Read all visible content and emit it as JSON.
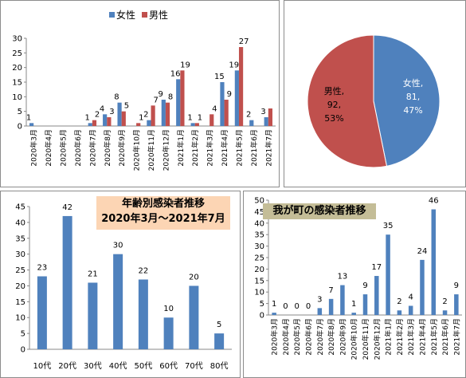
{
  "colors": {
    "female": "#4f81bd",
    "male": "#c0504d",
    "bar": "#4f81bd",
    "title3_bg": "#fcd5b4",
    "title4_bg": "#c4bd97"
  },
  "chart_data": [
    {
      "type": "bar",
      "title": "",
      "legend": {
        "position": "top",
        "entries": [
          "女性",
          "男性"
        ]
      },
      "ylim": [
        0,
        30
      ],
      "yticks": [
        0,
        5,
        10,
        15,
        20,
        25,
        30
      ],
      "categories": [
        "2020年3月",
        "2020年4月",
        "2020年5月",
        "2020年6月",
        "2020年7月",
        "2020年8月",
        "2020年9月",
        "2020年10月",
        "2020年11月",
        "2020年12月",
        "2021年1月",
        "2021年2月",
        "2021年3月",
        "2021年4月",
        "2021年5月",
        "2021年6月",
        "2021年7月"
      ],
      "series": [
        {
          "name": "女性",
          "values": [
            1,
            0,
            0,
            0,
            1,
            4,
            8,
            0,
            2,
            9,
            16,
            1,
            0,
            15,
            19,
            2,
            3
          ],
          "labels": [
            "1",
            "",
            "",
            "",
            "1",
            "4",
            "8",
            "",
            "2",
            "9",
            "16",
            "1",
            "",
            "15",
            "19",
            "2",
            "3"
          ]
        },
        {
          "name": "男性",
          "values": [
            0,
            0,
            0,
            0,
            2,
            3,
            5,
            1,
            7,
            8,
            19,
            1,
            4,
            9,
            27,
            0,
            6
          ],
          "labels": [
            "",
            "",
            "",
            "",
            "2",
            "3",
            "5",
            "1",
            "7",
            "8",
            "19",
            "1",
            "4",
            "9",
            "27",
            "",
            ""
          ]
        }
      ]
    },
    {
      "type": "pie",
      "slices": [
        {
          "name": "女性",
          "value": 81,
          "percent": "47%",
          "label_lines": [
            "女性,",
            "81,",
            "47%"
          ]
        },
        {
          "name": "男性",
          "value": 92,
          "percent": "53%",
          "label_lines": [
            "男性,",
            "92,",
            "53%"
          ]
        }
      ]
    },
    {
      "type": "bar",
      "title": "年齢別感染者推移",
      "subtitle": "2020年3月～2021年7月",
      "ylim": [
        0,
        45
      ],
      "yticks": [
        0,
        5,
        10,
        15,
        20,
        25,
        30,
        35,
        40,
        45
      ],
      "categories": [
        "10代",
        "20代",
        "30代",
        "40代",
        "50代",
        "60代",
        "70代",
        "80代"
      ],
      "values": [
        23,
        42,
        21,
        30,
        22,
        10,
        20,
        5
      ]
    },
    {
      "type": "bar",
      "title": "我が町の感染者推移",
      "ylim": [
        0,
        50
      ],
      "yticks": [
        0,
        5,
        10,
        15,
        20,
        25,
        30,
        35,
        40,
        45,
        50
      ],
      "categories": [
        "2020年3月",
        "2020年4月",
        "2020年5月",
        "2020年6月",
        "2020年7月",
        "2020年8月",
        "2020年9月",
        "2020年10月",
        "2020年11月",
        "2020年12月",
        "2021年1月",
        "2021年2月",
        "2021年3月",
        "2021年4月",
        "2021年5月",
        "2021年6月",
        "2021年7月"
      ],
      "values": [
        1,
        0,
        0,
        0,
        3,
        7,
        13,
        1,
        9,
        17,
        35,
        2,
        4,
        24,
        46,
        2,
        9
      ]
    }
  ]
}
